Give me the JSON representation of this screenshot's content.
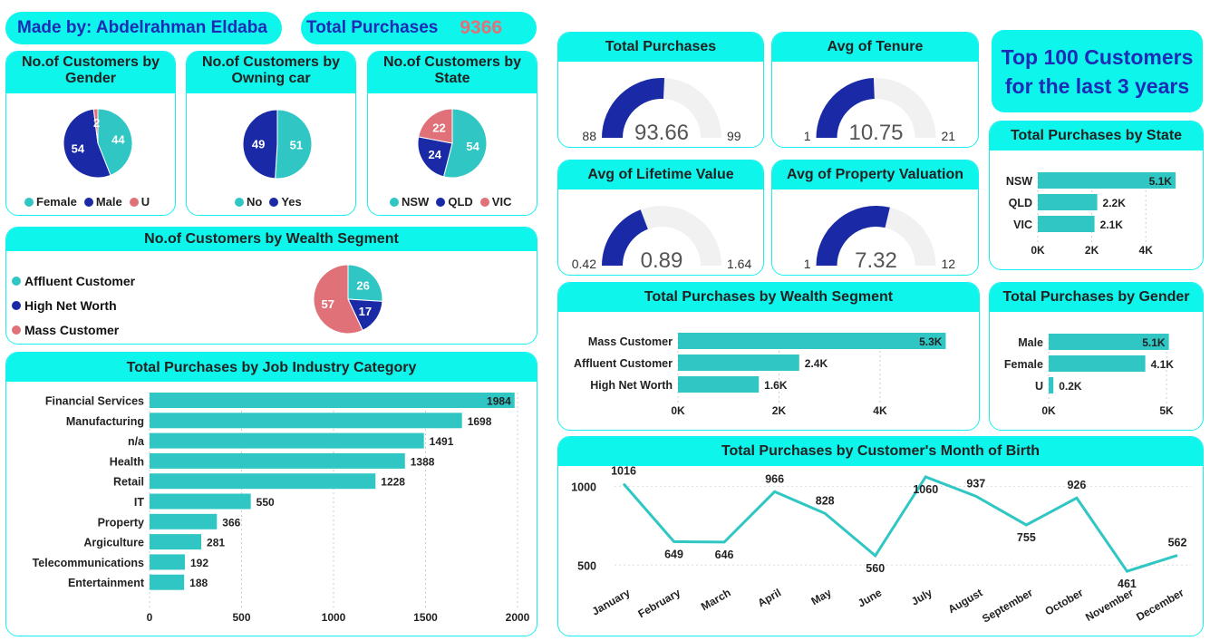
{
  "header": {
    "author": "Made by: Abdelrahman Eldaba",
    "kpi_label": "Total Purchases",
    "kpi_value": "9366"
  },
  "banner": {
    "line1": "Top 100 Customers",
    "line2": "for the last 3 years"
  },
  "colors": {
    "teal": "#2fc6c4",
    "navy": "#1a2aa6",
    "pink": "#e07178",
    "header_bg": "#0ef5ec",
    "gauge_bg": "#f1f1f1"
  },
  "chart_data": [
    {
      "id": "gender_pie",
      "type": "pie",
      "title": "No.of Customers by Gender",
      "categories": [
        "Female",
        "Male",
        "U"
      ],
      "values": [
        44,
        54,
        2
      ],
      "colors": [
        "#2fc6c4",
        "#1a2aa6",
        "#e07178"
      ]
    },
    {
      "id": "car_pie",
      "type": "pie",
      "title": "No.of Customers by Owning car",
      "categories": [
        "No",
        "Yes"
      ],
      "values": [
        51,
        49
      ],
      "colors": [
        "#2fc6c4",
        "#1a2aa6"
      ]
    },
    {
      "id": "state_pie",
      "type": "pie",
      "title": "No.of Customers by State",
      "categories": [
        "NSW",
        "QLD",
        "VIC"
      ],
      "values": [
        54,
        24,
        22
      ],
      "colors": [
        "#2fc6c4",
        "#1a2aa6",
        "#e07178"
      ]
    },
    {
      "id": "wealth_pie",
      "type": "pie",
      "title": "No.of Customers by Wealth Segment",
      "categories": [
        "Affluent Customer",
        "High Net Worth",
        "Mass Customer"
      ],
      "values": [
        26,
        17,
        57
      ],
      "colors": [
        "#2fc6c4",
        "#1a2aa6",
        "#e07178"
      ]
    },
    {
      "id": "job_bar",
      "type": "bar",
      "orientation": "horizontal",
      "title": "Total Purchases by Job Industry Category",
      "categories": [
        "Financial Services",
        "Manufacturing",
        "n/a",
        "Health",
        "Retail",
        "IT",
        "Property",
        "Argiculture",
        "Telecommunications",
        "Entertainment"
      ],
      "values": [
        1984,
        1698,
        1491,
        1388,
        1228,
        550,
        366,
        281,
        192,
        188
      ],
      "xlim": [
        0,
        2000
      ],
      "xticks": [
        "0",
        "500",
        "1000",
        "1500",
        "2000"
      ],
      "tickvals": [
        0,
        500,
        1000,
        1500,
        2000
      ]
    },
    {
      "id": "g_purch",
      "type": "gauge",
      "title": "Total Purchases",
      "value": 93.66,
      "min": 88,
      "max": 99,
      "value_label": "93.66",
      "min_label": "88",
      "max_label": "99"
    },
    {
      "id": "g_tenure",
      "type": "gauge",
      "title": "Avg of Tenure",
      "value": 10.75,
      "min": 1,
      "max": 21,
      "value_label": "10.75",
      "min_label": "1",
      "max_label": "21"
    },
    {
      "id": "g_ltv",
      "type": "gauge",
      "title": "Avg of Lifetime Value",
      "value": 0.89,
      "min": 0.42,
      "max": 1.64,
      "value_label": "0.89",
      "min_label": "0.42",
      "max_label": "1.64"
    },
    {
      "id": "g_prop",
      "type": "gauge",
      "title": "Avg of Property Valuation",
      "value": 7.32,
      "min": 1,
      "max": 12,
      "value_label": "7.32",
      "min_label": "1",
      "max_label": "12"
    },
    {
      "id": "state_bar",
      "type": "bar",
      "orientation": "horizontal",
      "title": "Total Purchases by State",
      "categories": [
        "NSW",
        "QLD",
        "VIC"
      ],
      "values": [
        5100,
        2200,
        2100
      ],
      "labels": [
        "5.1K",
        "2.2K",
        "2.1K"
      ],
      "xlim": [
        0,
        5000
      ],
      "xticks": [
        "0K",
        "2K",
        "4K"
      ],
      "tickvals": [
        0,
        2000,
        4000
      ]
    },
    {
      "id": "wealth_bar",
      "type": "bar",
      "orientation": "horizontal",
      "title": "Total Purchases by Wealth Segment",
      "categories": [
        "Mass Customer",
        "Affluent Customer",
        "High Net Worth"
      ],
      "values": [
        5300,
        2400,
        1600
      ],
      "labels": [
        "5.3K",
        "2.4K",
        "1.6K"
      ],
      "xlim": [
        0,
        5400
      ],
      "xticks": [
        "0K",
        "2K",
        "4K"
      ],
      "tickvals": [
        0,
        2000,
        4000
      ]
    },
    {
      "id": "gender_bar",
      "type": "bar",
      "orientation": "horizontal",
      "title": "Total Purchases by Gender",
      "categories": [
        "Male",
        "Female",
        "U"
      ],
      "values": [
        5100,
        4100,
        200
      ],
      "labels": [
        "5.1K",
        "4.1K",
        "0.2K"
      ],
      "xlim": [
        0,
        5000
      ],
      "xticks": [
        "0K",
        "5K"
      ],
      "tickvals": [
        0,
        5000
      ]
    },
    {
      "id": "month_line",
      "type": "line",
      "title": "Total Purchases by Customer's Month of Birth",
      "categories": [
        "January",
        "February",
        "March",
        "April",
        "May",
        "June",
        "July",
        "August",
        "September",
        "October",
        "November",
        "December"
      ],
      "values": [
        1016,
        649,
        646,
        966,
        828,
        560,
        1060,
        937,
        755,
        926,
        461,
        562
      ],
      "yticks": [
        "1000",
        "500"
      ],
      "ytickvals": [
        1000,
        500
      ]
    }
  ]
}
